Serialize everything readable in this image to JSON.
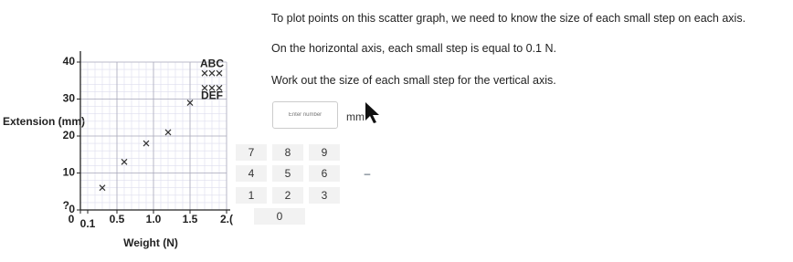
{
  "chart_data": {
    "type": "scatter",
    "x_label": "Weight (N)",
    "y_label": "Extension (mm)",
    "x": [
      0.3,
      0.6,
      0.9,
      1.2,
      1.5,
      1.7,
      1.8,
      1.9,
      1.7,
      1.8,
      1.9
    ],
    "values": [
      6,
      13,
      18,
      21,
      29,
      37,
      37,
      37,
      33,
      33,
      33
    ],
    "color": "#333333",
    "xlim": [
      0,
      2
    ],
    "ylim": [
      0,
      40
    ],
    "xticks": [
      0,
      0.1,
      0.5,
      {
        "value": 1,
        "label": "1.0"
      },
      1.5,
      {
        "value": 2,
        "label": "2.("
      }
    ],
    "yticks": [
      0,
      10,
      20,
      30,
      40
    ],
    "annotations": [
      "ABC",
      "DEF",
      "?"
    ],
    "grid": true
  },
  "panel": {
    "intro": "To plot points on this scatter graph, we need to know the size of each small step on each axis.",
    "horizontal": "On the horizontal axis, each small step is equal to 0.1 N.",
    "question": "Work out the size of each small step for the vertical axis.",
    "placeholder": "Enter number",
    "unit": "mm",
    "keypad": [
      [
        "7",
        "8",
        "9"
      ],
      [
        "4",
        "5",
        "6",
        "–"
      ],
      [
        "1",
        "2",
        "3"
      ],
      [
        "0"
      ]
    ]
  }
}
